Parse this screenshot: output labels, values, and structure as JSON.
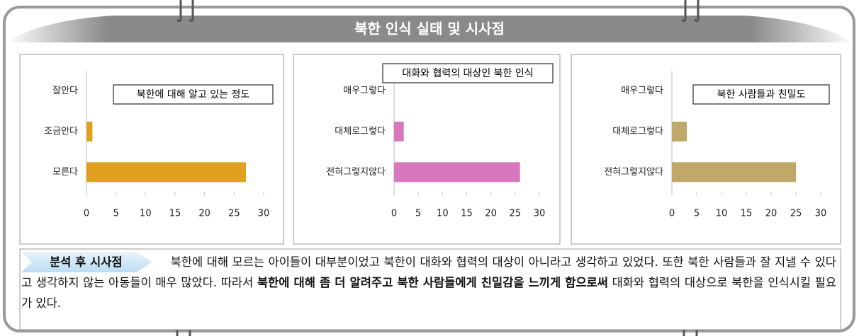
{
  "header": {
    "title": "북한 인식 실태 및 시사점"
  },
  "chart_data": [
    {
      "type": "barh",
      "title": "북한에 대해 알고 있는 정도",
      "categories": [
        "잘안다",
        "조금안다",
        "모른다"
      ],
      "values": [
        0,
        1,
        27
      ],
      "color": "#e0a020",
      "xlim": [
        0,
        30
      ],
      "xticks": [
        0,
        5,
        10,
        15,
        20,
        25,
        30
      ]
    },
    {
      "type": "barh",
      "title": "대화와 협력의 대상인 북한 인식",
      "categories": [
        "매우그렇다",
        "대체로그렇다",
        "전혀그렇지않다"
      ],
      "values": [
        0,
        2,
        26
      ],
      "color": "#d878bc",
      "xlim": [
        0,
        30
      ],
      "xticks": [
        0,
        5,
        10,
        15,
        20,
        25,
        30
      ]
    },
    {
      "type": "barh",
      "title": "북한 사람들과 친밀도",
      "categories": [
        "매우그렇다",
        "대체로그렇다",
        "전혀그렇지않다"
      ],
      "values": [
        0,
        3,
        25
      ],
      "color": "#bfa868",
      "xlim": [
        0,
        30
      ],
      "xticks": [
        0,
        5,
        10,
        15,
        20,
        25,
        30
      ]
    }
  ],
  "analysis": {
    "label": "분석 후 시사점",
    "segments": [
      {
        "text": "북한에 대해 모르는 아이들이 대부분이었고 북한이 대화와 협력의 대상이 아니라고 생각하고 있었다. 또한 북한 사람들과 잘 지낼 수 있다고 생각하지 않는 아동들이 매우 많았다. 따라서 ",
        "bold": false
      },
      {
        "text": "북한에 대해 좀 더 알려주고 북한 사람들에게 친밀감을 느끼게 함으로써",
        "bold": true
      },
      {
        "text": " 대화와 협력의 대상으로 북한을 인식시킬 필요가 있다.",
        "bold": false
      }
    ]
  }
}
